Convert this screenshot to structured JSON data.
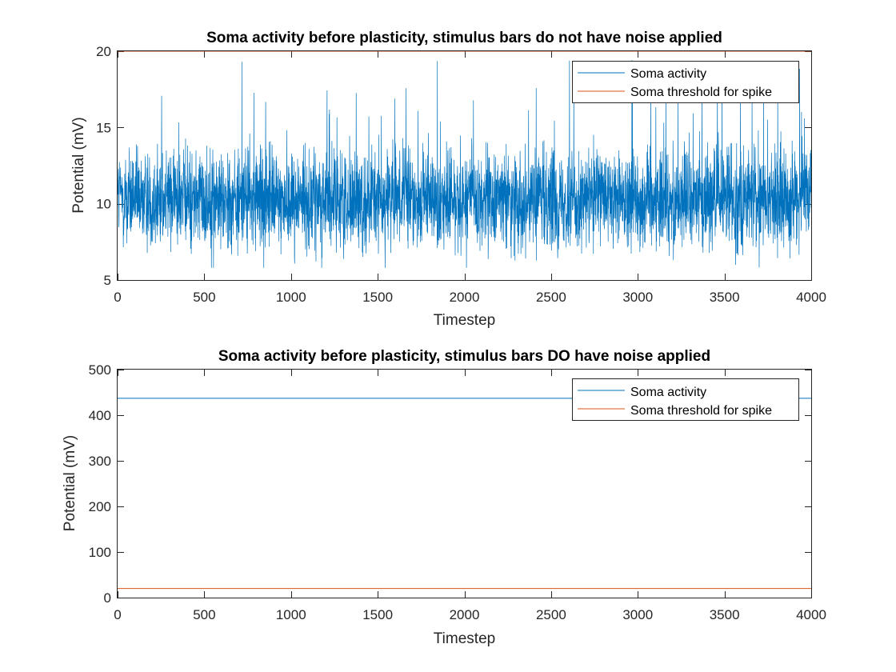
{
  "chart_data": [
    {
      "type": "line",
      "title": "Soma activity before plasticity, stimulus bars do not have noise applied",
      "xlabel": "Timestep",
      "ylabel": "Potential (mV)",
      "xlim": [
        0,
        4000
      ],
      "ylim": [
        5,
        20
      ],
      "xticks": [
        0,
        500,
        1000,
        1500,
        2000,
        2500,
        3000,
        3500,
        4000
      ],
      "yticks": [
        5,
        10,
        15,
        20
      ],
      "legend_position": "top-right",
      "series": [
        {
          "name": "Soma activity",
          "color": "#0072BD",
          "kind": "noisy",
          "mean": 10.3,
          "std": 1.6,
          "min": 5.8,
          "max": 19.5,
          "spike_rate": 0.012,
          "spike_range": [
            15,
            19.5
          ],
          "length": 4000
        },
        {
          "name": "Soma threshold for spike",
          "color": "#D95319",
          "kind": "constant",
          "value": 20
        }
      ]
    },
    {
      "type": "line",
      "title": "Soma activity before plasticity, stimulus bars DO have noise applied",
      "xlabel": "Timestep",
      "ylabel": "Potential (mV)",
      "xlim": [
        0,
        4000
      ],
      "ylim": [
        0,
        500
      ],
      "xticks": [
        0,
        500,
        1000,
        1500,
        2000,
        2500,
        3000,
        3500,
        4000
      ],
      "yticks": [
        0,
        100,
        200,
        300,
        400,
        500
      ],
      "legend_position": "top-right",
      "series": [
        {
          "name": "Soma activity",
          "color": "#0072BD",
          "kind": "constant",
          "value": 437
        },
        {
          "name": "Soma threshold for spike",
          "color": "#D95319",
          "kind": "constant",
          "value": 20
        }
      ]
    }
  ]
}
